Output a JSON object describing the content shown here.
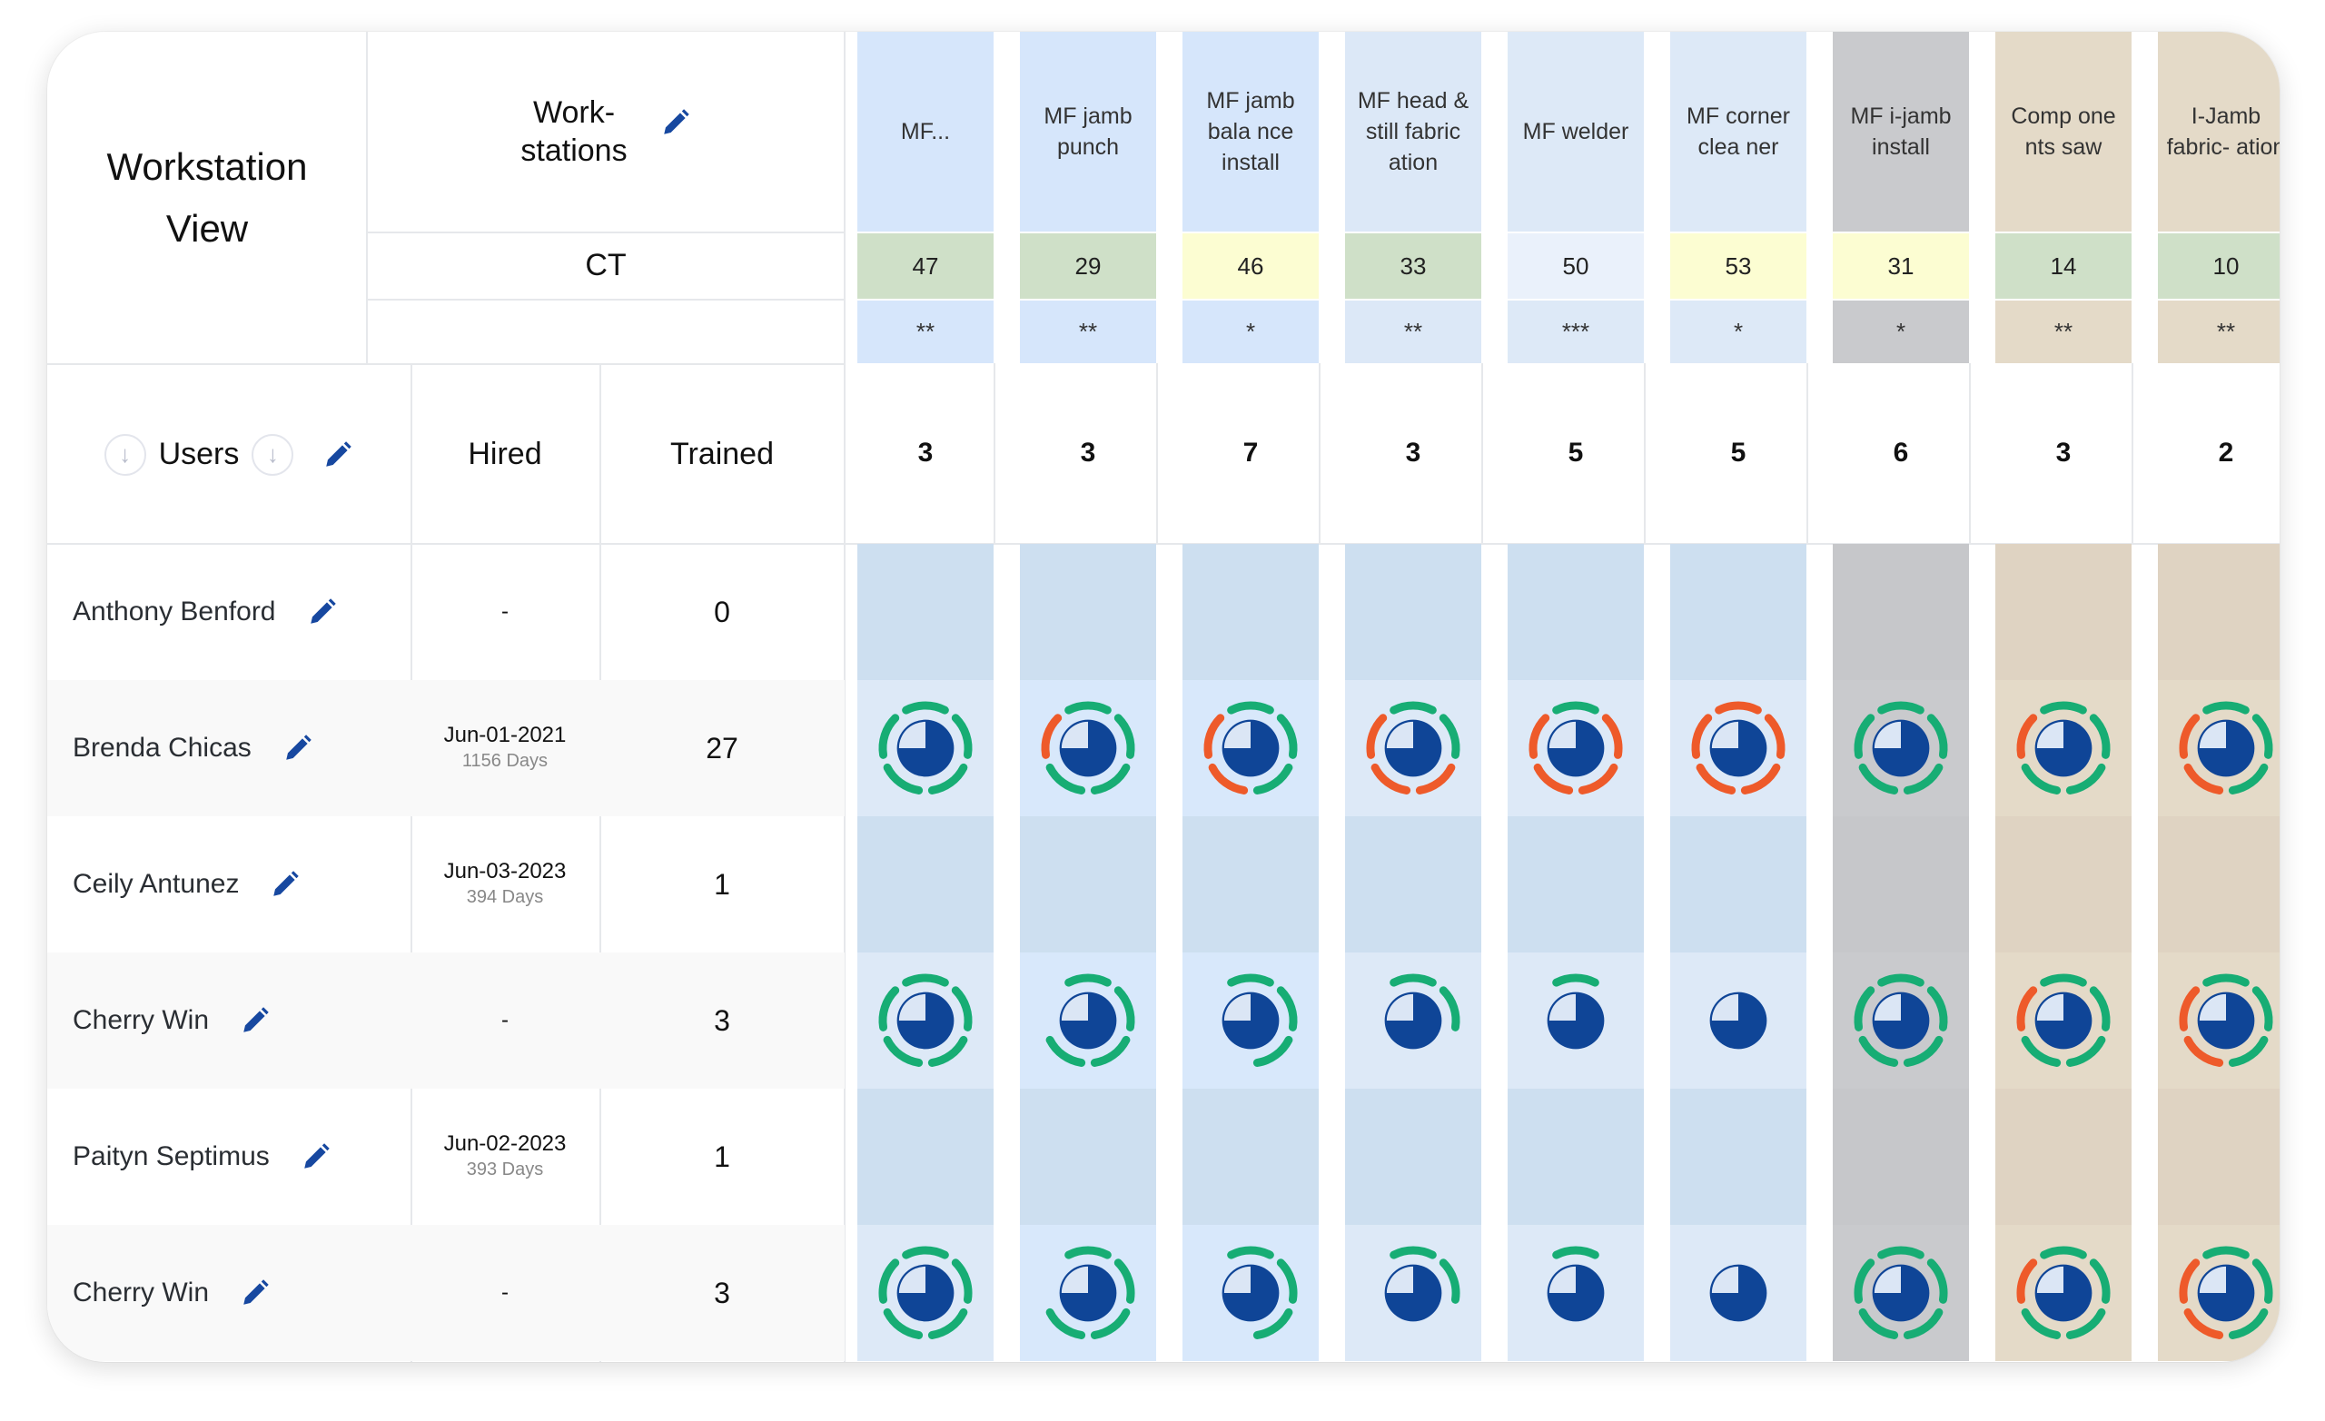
{
  "title": {
    "line1": "Workstation",
    "line2": "View"
  },
  "workstations_label": {
    "line1": "Work-",
    "line2": "stations"
  },
  "ct_label": "CT",
  "headers": {
    "users": "Users",
    "hired": "Hired",
    "trained": "Trained"
  },
  "colors": {
    "green": "#17ad74",
    "orange": "#ee5a2a",
    "pie": "#0f4597",
    "pie_light": "#dbe6f5",
    "pencil": "#1748a0"
  },
  "segment_legend": "segments ordered clockwise from top: top, right, bottom-right, bottom-left, left; g=green, o=orange, empty=absent",
  "workstations": [
    {
      "name": "MF...",
      "ct": "47",
      "stars": "**",
      "count": "3",
      "bg": "#d6e6fb",
      "body_bg": "#dde9f7",
      "empty_bg": "#cddff0",
      "ct_bg": "#cfe0c8"
    },
    {
      "name": "MF jamb punch",
      "ct": "29",
      "stars": "**",
      "count": "3",
      "bg": "#d6e6fb",
      "body_bg": "#d8e8fb",
      "empty_bg": "#cddff0",
      "ct_bg": "#cfe0c8"
    },
    {
      "name": "MF jamb bala nce install",
      "ct": "46",
      "stars": "*",
      "count": "7",
      "bg": "#d6e6fb",
      "body_bg": "#d8e8fb",
      "empty_bg": "#cddff0",
      "ct_bg": "#fcfdd2"
    },
    {
      "name": "MF head & still fabric ation",
      "ct": "33",
      "stars": "**",
      "count": "3",
      "bg": "#dce8f7",
      "body_bg": "#dde9f7",
      "empty_bg": "#cddff0",
      "ct_bg": "#cfe0c8"
    },
    {
      "name": "MF welder",
      "ct": "50",
      "stars": "***",
      "count": "5",
      "bg": "#dde9f7",
      "body_bg": "#dde9f7",
      "empty_bg": "#cddff0",
      "ct_bg": "#eaf1fb"
    },
    {
      "name": "MF corner clea ner",
      "ct": "53",
      "stars": "*",
      "count": "5",
      "bg": "#dde9f7",
      "body_bg": "#dde9f7",
      "empty_bg": "#cddff0",
      "ct_bg": "#fcfdd2"
    },
    {
      "name": "MF i-jamb install",
      "ct": "31",
      "stars": "*",
      "count": "6",
      "bg": "#c9cacd",
      "body_bg": "#c9cacd",
      "empty_bg": "#c6c7ca",
      "ct_bg": "#fcfdd2"
    },
    {
      "name": "Comp one nts saw",
      "ct": "14",
      "stars": "**",
      "count": "3",
      "bg": "#e4dac8",
      "body_bg": "#e4dac8",
      "empty_bg": "#dfd3c2",
      "ct_bg": "#cfe0c8"
    },
    {
      "name": "I-Jamb fabric- ation",
      "ct": "10",
      "stars": "**",
      "count": "2",
      "bg": "#e4dac8",
      "body_bg": "#e4dac8",
      "empty_bg": "#dfd3c2",
      "ct_bg": "#cfe0c8"
    }
  ],
  "users": [
    {
      "name": "Anthony Benford",
      "hired": "-",
      "days": "",
      "trained": "0",
      "cells": null
    },
    {
      "name": "Brenda Chicas",
      "hired": "Jun-01-2021",
      "days": "1156 Days",
      "trained": "27",
      "cells": [
        "ggggg",
        "ggggo",
        "gggoo",
        "ggooo",
        "goooo",
        "ooooo",
        "ggggg",
        "ggggo",
        "gggoo"
      ]
    },
    {
      "name": "Ceily Antunez",
      "hired": "Jun-03-2023",
      "days": "394 Days",
      "trained": "1",
      "cells": null
    },
    {
      "name": "Cherry Win",
      "hired": "-",
      "days": "",
      "trained": "3",
      "cells": [
        "ggggg",
        "gggg-",
        "ggg--",
        "gg---",
        "g----",
        "-----",
        "ggggg",
        "ggggo",
        "gggoo"
      ]
    },
    {
      "name": "Paityn Septimus",
      "hired": "Jun-02-2023",
      "days": "393 Days",
      "trained": "1",
      "cells": null
    },
    {
      "name": "Cherry Win",
      "hired": "-",
      "days": "",
      "trained": "3",
      "cells": [
        "ggggg",
        "gggg-",
        "ggg--",
        "gg---",
        "g----",
        "-----",
        "ggggg",
        "ggggo",
        "gggoo"
      ]
    }
  ]
}
